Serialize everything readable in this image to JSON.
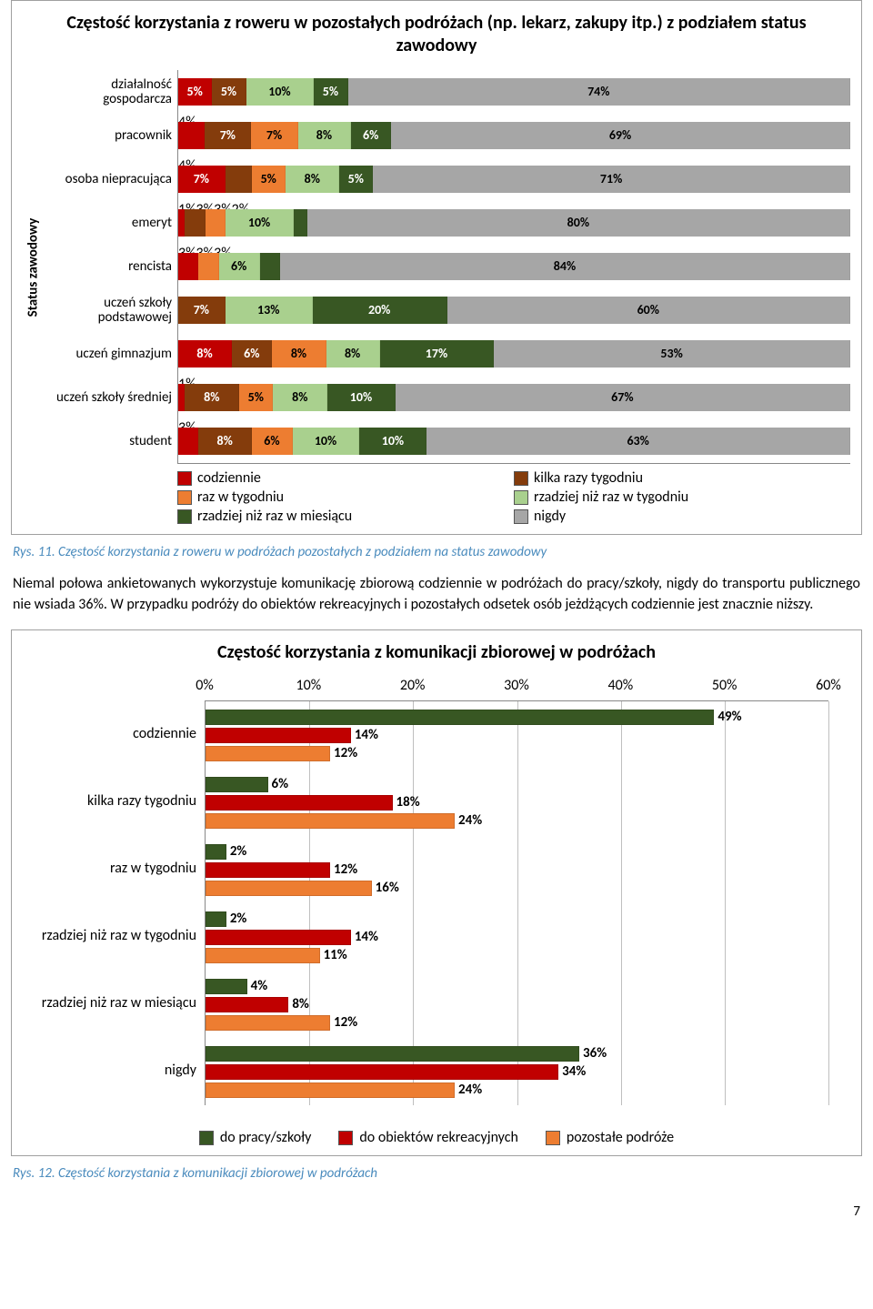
{
  "chart1": {
    "type": "stacked-bar-horizontal",
    "title": "Częstość korzystania z roweru w pozostałych podróżach (np. lekarz, zakupy itp.) z podziałem status zawodowy",
    "y_axis_label": "Status zawodowy",
    "categories": [
      "działalność gospodarcza",
      "pracownik",
      "osoba niepracująca",
      "emeryt",
      "rencista",
      "uczeń szkoły podstawowej",
      "uczeń gimnazjum",
      "uczeń szkoły średniej",
      "student"
    ],
    "series": [
      {
        "name": "codziennie",
        "color": "#c00000"
      },
      {
        "name": "kilka razy tygodniu",
        "color": "#843c0c"
      },
      {
        "name": "raz w tygodniu",
        "color": "#ed7d31"
      },
      {
        "name": "rzadziej niż raz w tygodniu",
        "color": "#a9d08e"
      },
      {
        "name": "rzadziej niż raz w miesiącu",
        "color": "#385723"
      },
      {
        "name": "nigdy",
        "color": "#a6a6a6"
      }
    ],
    "values": [
      [
        5,
        5,
        0,
        10,
        5,
        74
      ],
      [
        4,
        7,
        7,
        8,
        6,
        69
      ],
      [
        7,
        4,
        5,
        8,
        5,
        71
      ],
      [
        1,
        3,
        3,
        10,
        2,
        80
      ],
      [
        3,
        0,
        3,
        6,
        3,
        84
      ],
      [
        0,
        7,
        0,
        13,
        20,
        60
      ],
      [
        8,
        6,
        8,
        8,
        17,
        53
      ],
      [
        1,
        8,
        5,
        8,
        10,
        67
      ],
      [
        3,
        8,
        6,
        10,
        10,
        63
      ]
    ],
    "legend_labels": [
      "codziennie",
      "kilka razy tygodniu",
      "raz w tygodniu",
      "rzadziej niż raz w tygodniu",
      "rzadziej niż raz w miesiącu",
      "nigdy"
    ],
    "bar_outline": "#888888",
    "label_fontsize": 14
  },
  "caption1": "Rys. 11. Częstość korzystania z roweru w podróżach pozostałych z podziałem na status zawodowy",
  "paragraph": "Niemal połowa ankietowanych wykorzystuje komunikację zbiorową codziennie w podróżach do pracy/szkoły, nigdy do transportu publicznego nie wsiada 36%. W przypadku podróży do obiektów rekreacyjnych i pozostałych odsetek osób jeżdżących codziennie jest znacznie niższy.",
  "chart2": {
    "type": "grouped-bar-horizontal",
    "title": "Częstość korzystania z komunikacji zbiorowej w podróżach",
    "xlim_max": 60,
    "xtick_step": 10,
    "xticks": [
      "0%",
      "10%",
      "20%",
      "30%",
      "40%",
      "50%",
      "60%"
    ],
    "grid_color": "#bfbfbf",
    "categories": [
      "codziennie",
      "kilka razy tygodniu",
      "raz w tygodniu",
      "rzadziej niż raz w tygodniu",
      "rzadziej niż raz w miesiącu",
      "nigdy"
    ],
    "series": [
      {
        "name": "do pracy/szkoły",
        "color": "#385723"
      },
      {
        "name": "do obiektów rekreacyjnych",
        "color": "#c00000"
      },
      {
        "name": "pozostałe podróże",
        "color": "#ed7d31"
      }
    ],
    "values": [
      [
        49,
        14,
        12
      ],
      [
        6,
        18,
        24
      ],
      [
        2,
        12,
        16
      ],
      [
        2,
        14,
        11
      ],
      [
        4,
        8,
        12
      ],
      [
        36,
        34,
        24
      ]
    ]
  },
  "caption2": "Rys. 12. Częstość korzystania z komunikacji zbiorowej w podróżach",
  "page_number": "7"
}
